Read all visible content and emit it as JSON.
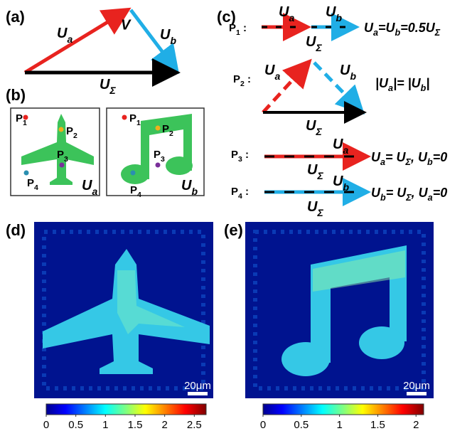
{
  "panel_labels": [
    "(a)",
    "(b)",
    "(c)",
    "(d)",
    "(e)"
  ],
  "panel_a": {
    "ua": [
      "U",
      {
        "sub": "a"
      }
    ],
    "v": "V",
    "ub": [
      "U",
      {
        "sub": "b"
      }
    ],
    "usum": [
      "U",
      {
        "sub": "Σ"
      }
    ]
  },
  "panel_b": {
    "plane_points": [
      [
        "P",
        {
          "sub": "1"
        }
      ],
      [
        "P",
        {
          "sub": "2"
        }
      ],
      [
        "P",
        {
          "sub": "3"
        }
      ],
      [
        "P",
        {
          "sub": "4"
        }
      ]
    ],
    "plane_label": [
      "U",
      {
        "sub": "a"
      }
    ],
    "note_points": [
      [
        "P",
        {
          "sub": "1"
        }
      ],
      [
        "P",
        {
          "sub": "2"
        }
      ],
      [
        "P",
        {
          "sub": "3"
        }
      ],
      [
        "P",
        {
          "sub": "4"
        }
      ]
    ],
    "note_label": [
      "U",
      {
        "sub": "b"
      }
    ]
  },
  "panel_c": {
    "rows": [
      {
        "label": [
          "P",
          {
            "sub": "1"
          },
          " :"
        ],
        "ua": [
          "U",
          {
            "sub": "a"
          }
        ],
        "ub": [
          "U",
          {
            "sub": "b"
          }
        ],
        "usum": [
          "U",
          {
            "sub": "Σ"
          }
        ],
        "equation": [
          "U",
          {
            "sub": "a"
          },
          "=U",
          {
            "sub": "b"
          },
          "=0.5U",
          {
            "sub": "Σ"
          }
        ]
      },
      {
        "label": [
          "P",
          {
            "sub": "2"
          },
          " :"
        ],
        "ua": [
          "U",
          {
            "sub": "a"
          }
        ],
        "ub": [
          "U",
          {
            "sub": "b"
          }
        ],
        "usum": [
          "U",
          {
            "sub": "Σ"
          }
        ],
        "equation": [
          "|U",
          {
            "sub": "a"
          },
          "|= |U",
          {
            "sub": "b"
          },
          "|"
        ]
      },
      {
        "label": [
          "P",
          {
            "sub": "3"
          },
          " :"
        ],
        "ua": [
          "U",
          {
            "sub": "a"
          }
        ],
        "usum": [
          "U",
          {
            "sub": "Σ"
          }
        ],
        "equation": [
          "U",
          {
            "sub": "a"
          },
          "= U",
          {
            "sub": "Σ"
          },
          ",   U",
          {
            "sub": "b"
          },
          "=0"
        ]
      },
      {
        "label": [
          "P",
          {
            "sub": "4"
          },
          " :"
        ],
        "ub": [
          "U",
          {
            "sub": "b"
          }
        ],
        "usum": [
          "U",
          {
            "sub": "Σ"
          }
        ],
        "equation": [
          "U",
          {
            "sub": "b"
          },
          "= U",
          {
            "sub": "Σ"
          },
          ",   U",
          {
            "sub": "a"
          },
          "=0"
        ]
      }
    ]
  },
  "panel_d": {
    "scale_bar": "20μm",
    "colorbar": {
      "lim": [
        0,
        2.7
      ],
      "ticks": [
        0,
        0.5,
        1,
        1.5,
        2,
        2.5
      ]
    }
  },
  "panel_e": {
    "scale_bar": "20μm",
    "colorbar": {
      "lim": [
        0,
        2.1
      ],
      "ticks": [
        0,
        0.5,
        1,
        1.5,
        2
      ]
    }
  }
}
